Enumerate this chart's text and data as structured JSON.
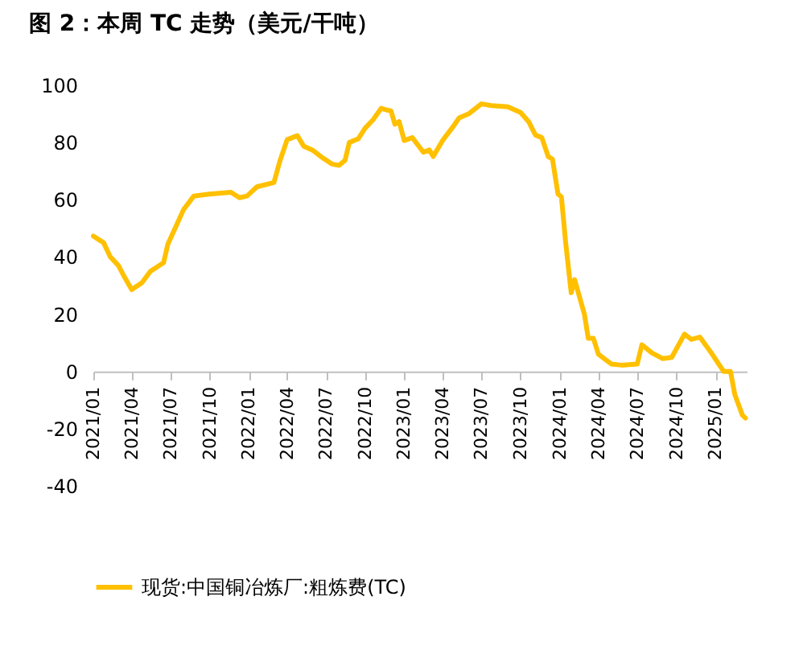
{
  "chart_data": {
    "type": "line",
    "title": "图 2：本周 TC 走势（美元/干吨）",
    "x": [
      "2021-01-01",
      "2021-01-25",
      "2021-02-10",
      "2021-03-01",
      "2021-03-15",
      "2021-04-01",
      "2021-04-25",
      "2021-05-15",
      "2021-06-15",
      "2021-06-25",
      "2021-07-15",
      "2021-08-01",
      "2021-08-25",
      "2021-10-01",
      "2021-11-20",
      "2021-12-10",
      "2021-12-28",
      "2022-01-20",
      "2022-03-01",
      "2022-03-15",
      "2022-04-01",
      "2022-04-25",
      "2022-05-10",
      "2022-06-01",
      "2022-06-20",
      "2022-07-15",
      "2022-08-01",
      "2022-08-15",
      "2022-08-25",
      "2022-09-15",
      "2022-10-01",
      "2022-10-20",
      "2022-11-08",
      "2022-11-15",
      "2022-12-01",
      "2022-12-10",
      "2022-12-20",
      "2023-01-01",
      "2023-01-20",
      "2023-02-15",
      "2023-03-01",
      "2023-03-10",
      "2023-04-01",
      "2023-04-25",
      "2023-05-10",
      "2023-06-01",
      "2023-07-01",
      "2023-07-25",
      "2023-09-01",
      "2023-10-01",
      "2023-10-20",
      "2023-11-05",
      "2023-11-20",
      "2023-12-05",
      "2023-12-15",
      "2023-12-28",
      "2024-01-05",
      "2024-01-15",
      "2024-01-28",
      "2024-02-05",
      "2024-02-28",
      "2024-03-08",
      "2024-03-20",
      "2024-04-01",
      "2024-05-01",
      "2024-05-25",
      "2024-07-01",
      "2024-07-12",
      "2024-08-05",
      "2024-08-30",
      "2024-09-20",
      "2024-10-01",
      "2024-10-20",
      "2024-11-05",
      "2024-11-25",
      "2024-12-20",
      "2025-01-20",
      "2025-02-05",
      "2025-02-15",
      "2025-03-05",
      "2025-03-12"
    ],
    "series": [
      {
        "name": "现货:中国铜冶炼厂:粗炼费(TC)",
        "color": "#ffc000",
        "values": [
          47.3,
          45,
          40,
          37,
          33,
          28.6,
          31,
          35,
          38,
          44.5,
          51,
          56.6,
          61.3,
          62,
          62.6,
          60.7,
          61.3,
          64.5,
          66,
          73.5,
          81,
          82.4,
          78.7,
          77.2,
          75,
          72.5,
          72,
          73.8,
          80,
          81.3,
          85,
          88,
          92,
          91.6,
          91,
          86.4,
          87.3,
          80.7,
          81.7,
          76.6,
          77.4,
          75.1,
          80.7,
          85.4,
          88.6,
          90,
          93.5,
          92.9,
          92.5,
          90.5,
          87.3,
          82.6,
          81.7,
          75.1,
          74.2,
          62,
          61,
          45,
          27.5,
          32.1,
          20,
          11.6,
          11.6,
          6,
          2.6,
          2.2,
          2.6,
          9.3,
          6.4,
          4.5,
          4.9,
          7.9,
          13,
          11.2,
          12,
          6.9,
          0,
          0,
          -8,
          -15.3,
          -16.3
        ]
      }
    ],
    "xlim": [
      "2021-01-01",
      "2025-03-15"
    ],
    "xticks": [
      {
        "value": "2021-01",
        "label": "2021/01"
      },
      {
        "value": "2021-04",
        "label": "2021/04"
      },
      {
        "value": "2021-07",
        "label": "2021/07"
      },
      {
        "value": "2021-10",
        "label": "2021/10"
      },
      {
        "value": "2022-01",
        "label": "2022/01"
      },
      {
        "value": "2022-04",
        "label": "2022/04"
      },
      {
        "value": "2022-07",
        "label": "2022/07"
      },
      {
        "value": "2022-10",
        "label": "2022/10"
      },
      {
        "value": "2023-01",
        "label": "2023/01"
      },
      {
        "value": "2023-04",
        "label": "2023/04"
      },
      {
        "value": "2023-07",
        "label": "2023/07"
      },
      {
        "value": "2023-10",
        "label": "2023/10"
      },
      {
        "value": "2024-01",
        "label": "2024/01"
      },
      {
        "value": "2024-04",
        "label": "2024/04"
      },
      {
        "value": "2024-07",
        "label": "2024/07"
      },
      {
        "value": "2024-10",
        "label": "2024/10"
      },
      {
        "value": "2025-01",
        "label": "2025/01"
      }
    ],
    "ylim": [
      -40,
      100
    ],
    "yticks": [
      -40,
      -20,
      0,
      20,
      40,
      60,
      80,
      100
    ],
    "grid": false,
    "legend": "bottom",
    "line_style": "solid"
  }
}
